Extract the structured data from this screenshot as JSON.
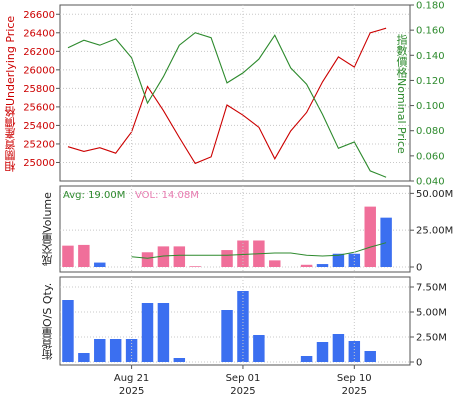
{
  "colors": {
    "underlying": "#cc0000",
    "nominal": "#2d8a2d",
    "vol_up": "#f06f9a",
    "vol_down": "#3b6ff0",
    "avg_line": "#2d8a2d",
    "frame": "#555555",
    "grid": "#c8c8c8"
  },
  "labels": {
    "underlying_axis": "相關資產價格Underlying Price",
    "nominal_axis": "指數價格Nominal Price",
    "volume_axis": "成交量Volume",
    "os_axis": "街貨量O/S Qty.",
    "avg_label": "Avg: 19.00M",
    "vol_label": "VOL: 14.08M"
  },
  "chart_data": [
    {
      "type": "line",
      "x": [
        "Aug 15",
        "Aug 18",
        "Aug 19",
        "Aug 20",
        "Aug 21",
        "Aug 22",
        "Aug 25",
        "Aug 26",
        "Aug 27",
        "Aug 28",
        "Aug 29",
        "Sep 01",
        "Sep 02",
        "Sep 03",
        "Sep 04",
        "Sep 05",
        "Sep 08",
        "Sep 09",
        "Sep 10",
        "Sep 11",
        "Sep 12",
        "Sep 15"
      ],
      "x_tick_labels": [
        "Aug 21\n2025",
        "Sep 01\n2025",
        "Sep 10\n2025"
      ],
      "series": [
        {
          "name": "相關資產價格Underlying Price",
          "axis": "left",
          "values": [
            25170,
            25120,
            25160,
            25100,
            25330,
            25820,
            25560,
            25270,
            24990,
            25060,
            25620,
            25510,
            25380,
            25040,
            25340,
            25540,
            25870,
            26140,
            26030,
            26400,
            26450,
            null
          ]
        },
        {
          "name": "指數價格Nominal Price",
          "axis": "right",
          "values": [
            0.146,
            0.152,
            0.148,
            0.153,
            0.138,
            0.102,
            0.123,
            0.148,
            0.158,
            0.154,
            0.118,
            0.126,
            0.137,
            0.156,
            0.13,
            0.117,
            0.093,
            0.066,
            0.071,
            0.048,
            0.043,
            null
          ]
        }
      ],
      "ylim_left": [
        24800,
        26700
      ],
      "yticks_left": [
        25000,
        25200,
        25400,
        25600,
        25800,
        26000,
        26200,
        26400,
        26600
      ],
      "ylim_right": [
        0.04,
        0.18
      ],
      "yticks_right": [
        0.04,
        0.06,
        0.08,
        0.1,
        0.12,
        0.14,
        0.16,
        0.18
      ],
      "grid": true
    },
    {
      "type": "bar",
      "categories": [
        "Aug 15",
        "Aug 18",
        "Aug 19",
        "Aug 20",
        "Aug 21",
        "Aug 22",
        "Aug 25",
        "Aug 26",
        "Aug 27",
        "Aug 28",
        "Aug 29",
        "Sep 01",
        "Sep 02",
        "Sep 03",
        "Sep 04",
        "Sep 05",
        "Sep 08",
        "Sep 09",
        "Sep 10",
        "Sep 11",
        "Sep 12",
        "Sep 15"
      ],
      "values": [
        14.5,
        15.0,
        3.0,
        0,
        0,
        10.0,
        14.0,
        14.0,
        0.5,
        0,
        11.5,
        18.0,
        18.0,
        4.5,
        0,
        1.5,
        2.0,
        9.0,
        9.0,
        41.0,
        33.5,
        null
      ],
      "direction": [
        "up",
        "up",
        "down",
        "down",
        "down",
        "up",
        "up",
        "up",
        "up",
        "down",
        "up",
        "up",
        "up",
        "up",
        "down",
        "up",
        "down",
        "down",
        "down",
        "up",
        "down",
        null
      ],
      "avg_line": [
        null,
        null,
        null,
        null,
        7.0,
        6.0,
        7.5,
        8.0,
        8.0,
        8.0,
        8.0,
        8.5,
        9.0,
        9.5,
        9.5,
        8.0,
        7.5,
        8.0,
        10.0,
        13.5,
        16.5,
        null
      ],
      "ylim": [
        0,
        55
      ],
      "yticks": [
        0,
        25,
        50
      ],
      "ytick_labels": [
        "0",
        "25.00M",
        "50.00M"
      ],
      "ylabel": "成交量Volume",
      "avg": "19.00M",
      "vol": "14.08M"
    },
    {
      "type": "bar",
      "categories": [
        "Aug 15",
        "Aug 18",
        "Aug 19",
        "Aug 20",
        "Aug 21",
        "Aug 22",
        "Aug 25",
        "Aug 26",
        "Aug 27",
        "Aug 28",
        "Aug 29",
        "Sep 01",
        "Sep 02",
        "Sep 03",
        "Sep 04",
        "Sep 05",
        "Sep 08",
        "Sep 09",
        "Sep 10",
        "Sep 11",
        "Sep 12",
        "Sep 15"
      ],
      "values": [
        6.2,
        0.9,
        2.3,
        2.3,
        2.3,
        5.9,
        5.9,
        0.4,
        0,
        0,
        5.2,
        7.1,
        2.7,
        0,
        0,
        0.6,
        2.0,
        2.8,
        2.1,
        1.1,
        0,
        null
      ],
      "ylim": [
        0,
        8.5
      ],
      "yticks": [
        0,
        2.5,
        5,
        7.5
      ],
      "ytick_labels": [
        "0",
        "2.50M",
        "5.00M",
        "7.50M"
      ],
      "ylabel": "街貨量O/S Qty."
    }
  ]
}
